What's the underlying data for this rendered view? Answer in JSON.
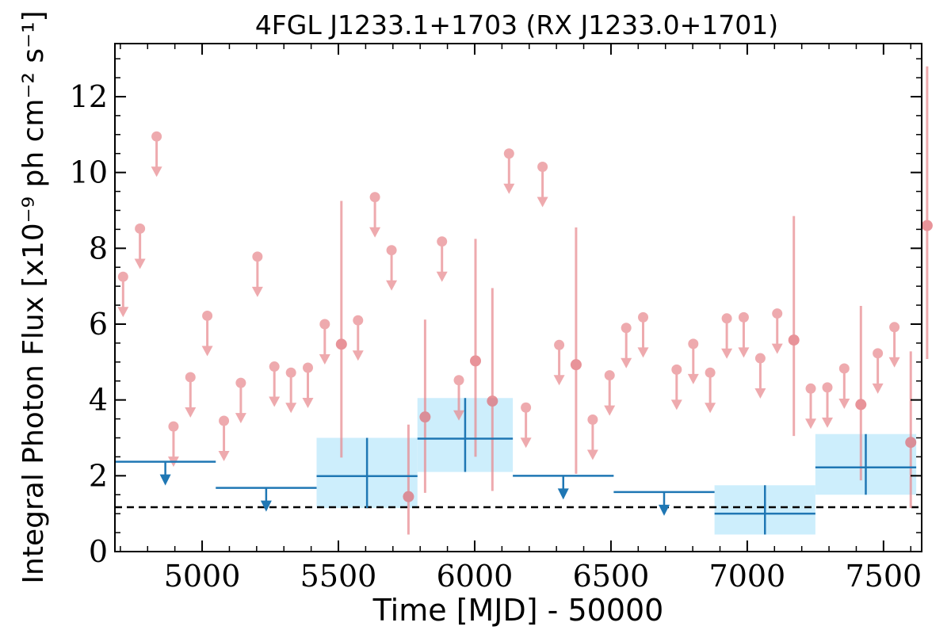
{
  "chart_data": {
    "type": "scatter",
    "title": "4FGL J1233.1+1703 (RX J1233.0+1701)",
    "xlabel": "Time [MJD] - 50000",
    "ylabel": "Integral Photon Flux [x10⁻⁹ ph cm⁻² s⁻¹]",
    "xlim": [
      4680,
      7640
    ],
    "ylim": [
      0,
      13.4
    ],
    "xticks": [
      5000,
      5500,
      6000,
      6500,
      7000,
      7500
    ],
    "xtick_labels": [
      "5000",
      "5500",
      "6000",
      "6500",
      "7000",
      "7500"
    ],
    "yticks": [
      0,
      2,
      4,
      6,
      8,
      10,
      12
    ],
    "ytick_labels": [
      "0",
      "2",
      "4",
      "6",
      "8",
      "10",
      "12"
    ],
    "grid": false,
    "reference_line": {
      "y": 1.17,
      "style": "dashed",
      "color": "#000000"
    },
    "series": [
      {
        "kind": "fine_bins",
        "color": "#e88a8f",
        "upper_limits": [
          {
            "x": 4710,
            "y": 7.25
          },
          {
            "x": 4772,
            "y": 8.52
          },
          {
            "x": 4833,
            "y": 10.95
          },
          {
            "x": 4895,
            "y": 3.3
          },
          {
            "x": 4957,
            "y": 4.6
          },
          {
            "x": 5019,
            "y": 6.22
          },
          {
            "x": 5080,
            "y": 3.45
          },
          {
            "x": 5142,
            "y": 4.45
          },
          {
            "x": 5203,
            "y": 7.78
          },
          {
            "x": 5265,
            "y": 4.88
          },
          {
            "x": 5326,
            "y": 4.72
          },
          {
            "x": 5388,
            "y": 4.85
          },
          {
            "x": 5450,
            "y": 6.0
          },
          {
            "x": 5572,
            "y": 6.1
          },
          {
            "x": 5634,
            "y": 9.35
          },
          {
            "x": 5695,
            "y": 7.95
          },
          {
            "x": 5880,
            "y": 8.18
          },
          {
            "x": 5942,
            "y": 4.52
          },
          {
            "x": 6126,
            "y": 10.5
          },
          {
            "x": 6188,
            "y": 3.8
          },
          {
            "x": 6249,
            "y": 10.15
          },
          {
            "x": 6310,
            "y": 5.45
          },
          {
            "x": 6433,
            "y": 3.48
          },
          {
            "x": 6495,
            "y": 4.65
          },
          {
            "x": 6556,
            "y": 5.9
          },
          {
            "x": 6618,
            "y": 6.18
          },
          {
            "x": 6741,
            "y": 4.8
          },
          {
            "x": 6802,
            "y": 5.48
          },
          {
            "x": 6864,
            "y": 4.72
          },
          {
            "x": 6925,
            "y": 6.15
          },
          {
            "x": 6987,
            "y": 6.18
          },
          {
            "x": 7048,
            "y": 5.1
          },
          {
            "x": 7110,
            "y": 6.28
          },
          {
            "x": 7233,
            "y": 4.3
          },
          {
            "x": 7294,
            "y": 4.33
          },
          {
            "x": 7356,
            "y": 4.83
          },
          {
            "x": 7479,
            "y": 5.23
          },
          {
            "x": 7540,
            "y": 5.92
          }
        ],
        "detections": [
          {
            "x": 5511,
            "y": 5.47,
            "ylo": 2.48,
            "yhi": 9.25
          },
          {
            "x": 5757,
            "y": 1.45,
            "ylo": 0.45,
            "yhi": 3.35
          },
          {
            "x": 5818,
            "y": 3.55,
            "ylo": 1.55,
            "yhi": 6.12
          },
          {
            "x": 6003,
            "y": 5.03,
            "ylo": 2.5,
            "yhi": 8.25
          },
          {
            "x": 6065,
            "y": 3.97,
            "ylo": 1.6,
            "yhi": 6.95
          },
          {
            "x": 6372,
            "y": 4.93,
            "ylo": 2.05,
            "yhi": 8.55
          },
          {
            "x": 7171,
            "y": 5.58,
            "ylo": 3.05,
            "yhi": 8.85
          },
          {
            "x": 7417,
            "y": 3.88,
            "ylo": 1.88,
            "yhi": 6.48
          },
          {
            "x": 7600,
            "y": 2.88,
            "ylo": 1.15,
            "yhi": 5.28
          },
          {
            "x": 7660,
            "y": 8.6,
            "ylo": 5.08,
            "yhi": 12.8
          }
        ]
      },
      {
        "kind": "coarse_bins",
        "color": "#1f77b4",
        "band_color": "#cdeefc",
        "upper_limits": [
          {
            "x_start": 4680,
            "x_end": 5050,
            "y": 2.37
          },
          {
            "x_start": 5050,
            "x_end": 5420,
            "y": 1.68
          },
          {
            "x_start": 6140,
            "x_end": 6510,
            "y": 2.0
          },
          {
            "x_start": 6510,
            "x_end": 6880,
            "y": 1.57
          }
        ],
        "detections": [
          {
            "x_start": 5420,
            "x_end": 5790,
            "y": 1.99,
            "ylo": 1.15,
            "yhi": 3.0
          },
          {
            "x_start": 5790,
            "x_end": 6140,
            "y": 2.98,
            "ylo": 2.1,
            "yhi": 4.05
          },
          {
            "x_start": 6880,
            "x_end": 7250,
            "y": 1.0,
            "ylo": 0.45,
            "yhi": 1.75
          },
          {
            "x_start": 7250,
            "x_end": 7620,
            "y": 2.22,
            "ylo": 1.5,
            "yhi": 3.1
          }
        ]
      }
    ]
  }
}
